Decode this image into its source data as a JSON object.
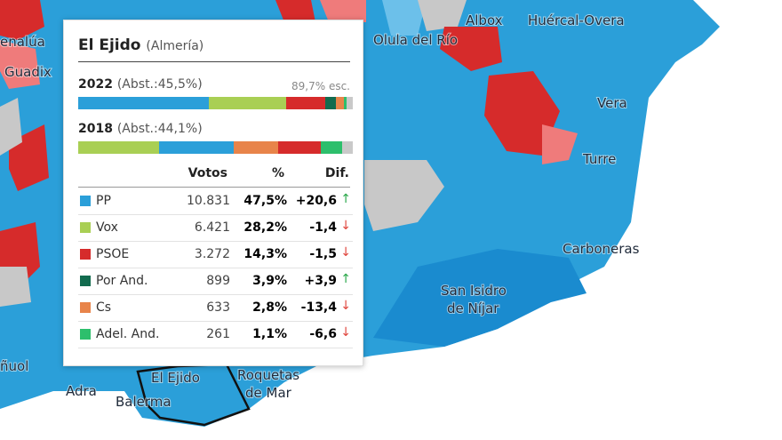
{
  "map": {
    "places": [
      "enalúa",
      "Guadix",
      "Albox",
      "Huércal-Overa",
      "Olula del Río",
      "Vera",
      "Turre",
      "Carboneras",
      "San Isidro",
      "de Níjar",
      "Roquetas",
      "de Mar",
      "El Ejido",
      "Adra",
      "Balerma",
      "ñuol"
    ]
  },
  "tooltip": {
    "title": "El Ejido",
    "province": "(Almería)",
    "elections": [
      {
        "year": "2022",
        "abstention": "(Abst.:45,5%)",
        "scrutiny": "89,7% esc."
      },
      {
        "year": "2018",
        "abstention": "(Abst.:44,1%)",
        "segments": [
          {
            "color": "#a9cf54",
            "value": 29.6
          },
          {
            "color": "#2b9fd9",
            "value": 26.9
          },
          {
            "color": "#e8844a",
            "value": 16.2
          },
          {
            "color": "#d62b2b",
            "value": 15.8
          },
          {
            "color": "#2dbf6c",
            "value": 7.7
          }
        ]
      }
    ],
    "headers": [
      "Votos",
      "%",
      "Dif."
    ],
    "rows": [
      {
        "party": "PP",
        "color": "#2b9fd9",
        "votes": "10.831",
        "pct": {
          "value": 47.5,
          "label": "47,5%"
        },
        "diff": "+20,6"
      },
      {
        "party": "Vox",
        "color": "#a9cf54",
        "votes": "6.421",
        "pct": {
          "value": 28.2,
          "label": "28,2%"
        },
        "diff": "-1,4"
      },
      {
        "party": "PSOE",
        "color": "#d62b2b",
        "votes": "3.272",
        "pct": {
          "value": 14.3,
          "label": "14,3%"
        },
        "diff": "-1,5"
      },
      {
        "party": "Por And.",
        "color": "#126b4e",
        "votes": "899",
        "pct": {
          "value": 3.9,
          "label": "3,9%"
        },
        "diff": "+3,9"
      },
      {
        "party": "Cs",
        "color": "#e8844a",
        "votes": "633",
        "pct": {
          "value": 2.8,
          "label": "2,8%"
        },
        "diff": "-13,4"
      },
      {
        "party": "Adel. And.",
        "color": "#2dbf6c",
        "votes": "261",
        "pct": {
          "value": 1.1,
          "label": "1,1%"
        },
        "diff": "-6,6"
      }
    ]
  }
}
